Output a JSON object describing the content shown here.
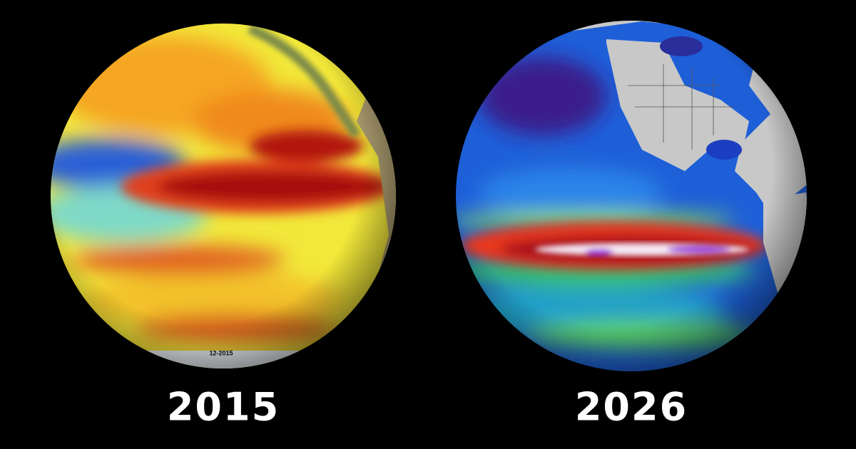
{
  "panels": [
    {
      "label": "2015",
      "stamp": "12-2015"
    },
    {
      "label": "2026"
    }
  ]
}
